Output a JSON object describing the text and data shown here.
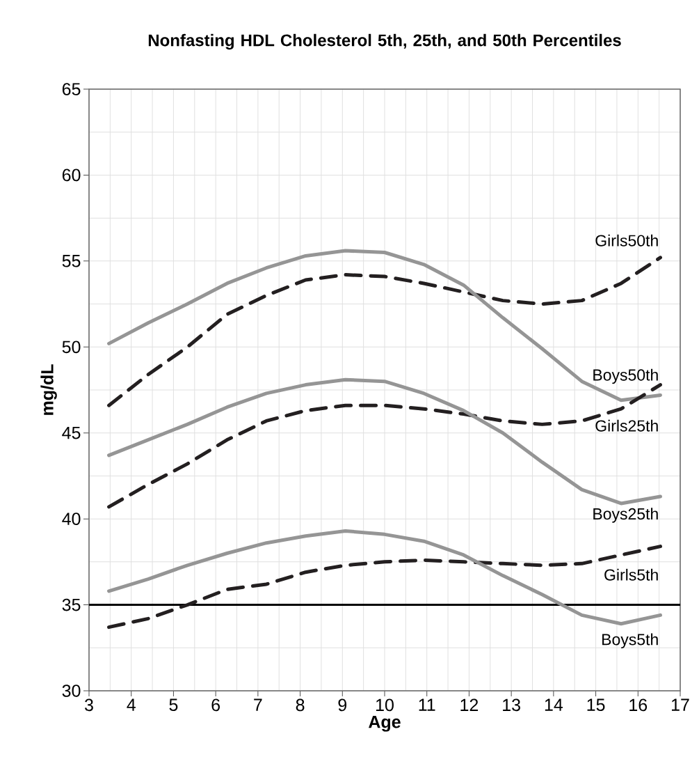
{
  "chart_data": {
    "type": "line",
    "title": "Nonfasting HDL Cholesterol 5th, 25th, and 50th Percentiles",
    "xlabel": "Age",
    "ylabel": "mg/dL",
    "x": [
      3.47,
      4.4,
      5.33,
      6.27,
      7.2,
      8.13,
      9.07,
      10.0,
      10.93,
      11.87,
      12.8,
      13.73,
      14.67,
      15.6,
      16.53
    ],
    "series": [
      {
        "name": "Girls50th",
        "color": "#231f20",
        "line_style": "dashed",
        "values": [
          46.6,
          48.4,
          50.0,
          51.9,
          53.0,
          53.9,
          54.2,
          54.1,
          53.7,
          53.2,
          52.7,
          52.5,
          52.7,
          53.7,
          55.2
        ]
      },
      {
        "name": "Boys50th",
        "color": "#959595",
        "line_style": "solid",
        "values": [
          50.2,
          51.4,
          52.5,
          53.7,
          54.6,
          55.3,
          55.6,
          55.5,
          54.8,
          53.6,
          51.7,
          49.9,
          48.0,
          46.9,
          47.2
        ]
      },
      {
        "name": "Girls25th",
        "color": "#231f20",
        "line_style": "dashed",
        "values": [
          40.7,
          42.0,
          43.2,
          44.6,
          45.7,
          46.3,
          46.6,
          46.6,
          46.4,
          46.1,
          45.7,
          45.5,
          45.7,
          46.4,
          47.8
        ]
      },
      {
        "name": "Boys25th",
        "color": "#959595",
        "line_style": "solid",
        "values": [
          43.7,
          44.6,
          45.5,
          46.5,
          47.3,
          47.8,
          48.1,
          48.0,
          47.3,
          46.3,
          45.0,
          43.3,
          41.7,
          40.9,
          41.3
        ]
      },
      {
        "name": "Girls5th",
        "color": "#231f20",
        "line_style": "dashed",
        "values": [
          33.7,
          34.2,
          35.0,
          35.9,
          36.2,
          36.9,
          37.3,
          37.5,
          37.6,
          37.5,
          37.4,
          37.3,
          37.4,
          37.9,
          38.4
        ]
      },
      {
        "name": "Boys5th",
        "color": "#959595",
        "line_style": "solid",
        "values": [
          35.8,
          36.5,
          37.3,
          38.0,
          38.6,
          39.0,
          39.3,
          39.1,
          38.7,
          37.9,
          36.7,
          35.6,
          34.4,
          33.9,
          34.4
        ]
      }
    ],
    "ref_lines": [
      {
        "axis": "y",
        "value": 35,
        "color": "#000000",
        "line_style": "solid"
      }
    ],
    "xlim": [
      3,
      17
    ],
    "xticks": [
      3,
      4,
      5,
      6,
      7,
      8,
      9,
      10,
      11,
      12,
      13,
      14,
      15,
      16,
      17
    ],
    "ylim": [
      30,
      65
    ],
    "yticks": [
      30,
      35,
      40,
      45,
      50,
      55,
      60,
      65
    ],
    "grid": true,
    "marker": "none"
  }
}
